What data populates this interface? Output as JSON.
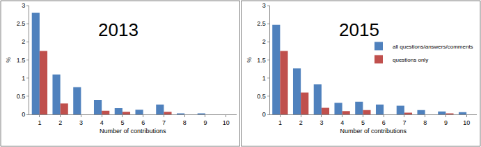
{
  "chart_data": [
    {
      "type": "bar",
      "title": "2013",
      "categories": [
        "1",
        "2",
        "3",
        "4",
        "5",
        "6",
        "7",
        "8",
        "9",
        "10"
      ],
      "series": [
        {
          "color": "#4f81bd",
          "values": [
            2.8,
            1.1,
            0.75,
            0.4,
            0.17,
            0.13,
            0.27,
            0.03,
            0.03,
            0
          ]
        },
        {
          "color": "#c0504d",
          "values": [
            1.75,
            0.3,
            0,
            0.1,
            0.07,
            0,
            0.07,
            0,
            0,
            0
          ]
        }
      ],
      "x_label": "Number of contributions",
      "y_label": "%",
      "ylim": [
        0,
        3
      ],
      "yticks": [
        0,
        0.5,
        1,
        1.5,
        2,
        2.5,
        3
      ],
      "grid": false
    },
    {
      "type": "bar",
      "title": "2015",
      "categories": [
        "1",
        "2",
        "3",
        "4",
        "5",
        "6",
        "7",
        "8",
        "9",
        "10"
      ],
      "series": [
        {
          "name": "all questions/answers/comments",
          "color": "#4f81bd",
          "values": [
            2.47,
            1.27,
            0.83,
            0.32,
            0.35,
            0.27,
            0.24,
            0.12,
            0.08,
            0.06
          ]
        },
        {
          "name": "questions only",
          "color": "#c0504d",
          "values": [
            1.75,
            0.6,
            0.18,
            0.09,
            0.12,
            0,
            0.05,
            0,
            0.03,
            0
          ]
        }
      ],
      "x_label": "Number of contributions",
      "y_label": "%",
      "ylim": [
        0,
        3
      ],
      "yticks": [
        0,
        0.5,
        1,
        1.5,
        2,
        2.5,
        3
      ],
      "grid": false,
      "legend": "right"
    }
  ]
}
